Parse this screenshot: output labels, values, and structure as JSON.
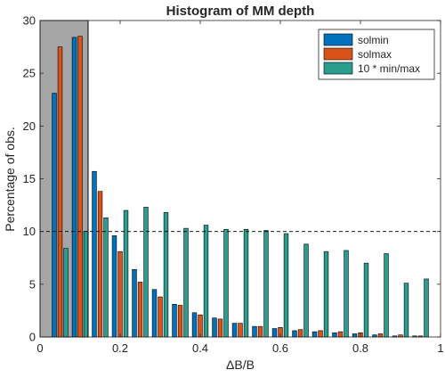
{
  "chart_data": {
    "type": "bar",
    "title": "Histogram of MM depth",
    "xlabel": "ΔB/B",
    "ylabel": "Percentage of obs.",
    "xlim": [
      0,
      1
    ],
    "ylim": [
      0,
      30
    ],
    "xticks": [
      "0",
      "0.2",
      "0.4",
      "0.6",
      "0.8",
      "1"
    ],
    "yticks": [
      "0",
      "5",
      "10",
      "15",
      "20",
      "25",
      "30"
    ],
    "grid": false,
    "legend_position": "top-right",
    "reference_line": {
      "y": 10,
      "style": "dashed"
    },
    "highlight_region": {
      "x": [
        0,
        0.12
      ],
      "color": "#a6a6a6"
    },
    "bin_centers": [
      0.05,
      0.1,
      0.15,
      0.2,
      0.25,
      0.3,
      0.35,
      0.4,
      0.45,
      0.5,
      0.55,
      0.6,
      0.65,
      0.7,
      0.75,
      0.8,
      0.85,
      0.9,
      0.95
    ],
    "series": [
      {
        "name": "solmin",
        "color": "#0072bd",
        "values": [
          23.1,
          28.4,
          15.7,
          9.6,
          6.4,
          4.5,
          3.1,
          2.3,
          1.8,
          1.3,
          1.0,
          0.8,
          0.6,
          0.5,
          0.4,
          0.3,
          0.2,
          0.1,
          0.1
        ]
      },
      {
        "name": "solmax",
        "color": "#d95319",
        "values": [
          27.5,
          28.5,
          13.8,
          8.1,
          5.2,
          3.8,
          3.0,
          2.1,
          1.7,
          1.3,
          1.0,
          0.9,
          0.7,
          0.6,
          0.5,
          0.4,
          0.3,
          0.2,
          0.1
        ]
      },
      {
        "name": "10 * min/max",
        "color": "#2a9d8f",
        "values": [
          8.4,
          10.0,
          11.3,
          12.0,
          12.3,
          11.8,
          10.3,
          10.6,
          10.2,
          10.2,
          10.1,
          9.8,
          8.8,
          8.1,
          8.2,
          7.0,
          7.9,
          5.1,
          5.5
        ]
      }
    ]
  }
}
